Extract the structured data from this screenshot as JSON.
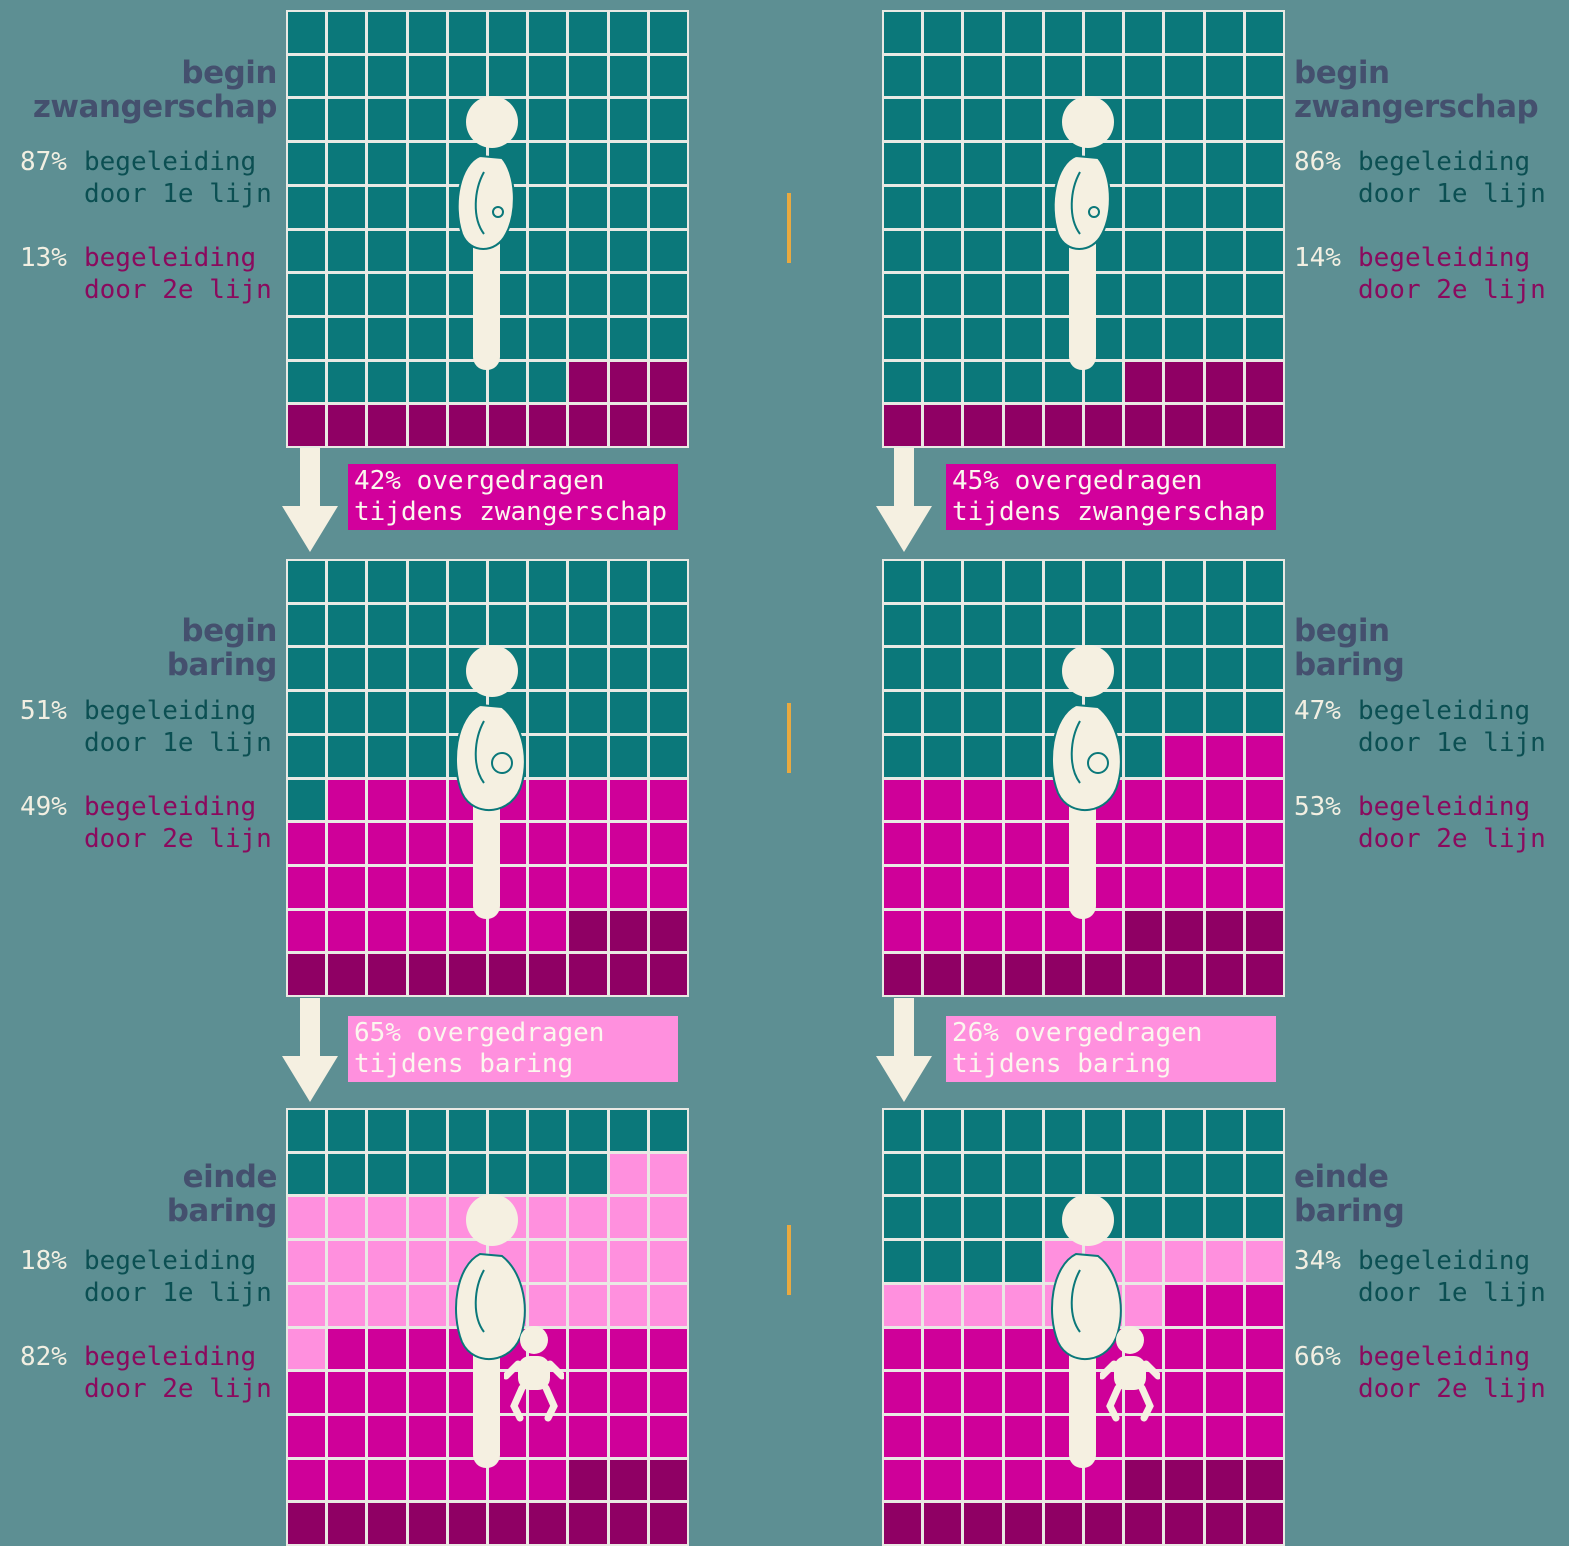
{
  "colors": {
    "background": "#5d8f93",
    "first_line": "#0b787a",
    "second_line_start": "#8f0064",
    "second_line_transfer_pregnancy": "#cf0099",
    "second_line_transfer_birth": "#ff90de",
    "title": "#44506e",
    "label_first": "#0b4f52",
    "label_second": "#8a0a5e",
    "percent_text": "#f2efe2",
    "grid_line": "#e9e9e4",
    "figure": "#f5f0e1",
    "banner_pregnancy": "#d2009c",
    "banner_birth": "#ff90de",
    "divider": "#e9a93f"
  },
  "chart_data": [
    {
      "type": "waffle",
      "panel": "left",
      "units": "percent",
      "stages": [
        {
          "title": [
            "begin",
            "zwangerschap"
          ],
          "first_line": {
            "percent": "87%",
            "label": "begeleiding\ndoor 1e lijn"
          },
          "second_line": {
            "percent": "13%",
            "label": "begeleiding\ndoor 2e lijn"
          },
          "cells": {
            "first_line": 87,
            "second_line_start": 13,
            "transfer_pregnancy": 0,
            "transfer_birth": 0
          },
          "figure": "pregnant-early"
        },
        {
          "title": [
            "begin",
            "baring"
          ],
          "first_line": {
            "percent": "51%",
            "label": "begeleiding\ndoor 1e lijn"
          },
          "second_line": {
            "percent": "49%",
            "label": "begeleiding\ndoor 2e lijn"
          },
          "cells": {
            "first_line": 51,
            "second_line_start": 13,
            "transfer_pregnancy": 36,
            "transfer_birth": 0
          },
          "figure": "pregnant-late"
        },
        {
          "title": [
            "einde",
            "baring"
          ],
          "first_line": {
            "percent": "18%",
            "label": "begeleiding\ndoor 1e lijn"
          },
          "second_line": {
            "percent": "82%",
            "label": "begeleiding\ndoor 2e lijn"
          },
          "cells": {
            "first_line": 18,
            "second_line_start": 13,
            "transfer_pregnancy": 36,
            "transfer_birth": 33
          },
          "figure": "mother-with-baby"
        }
      ],
      "transfers": [
        {
          "text": "42% overgedragen\ntijdens zwangerschap",
          "kind": "pregnancy"
        },
        {
          "text": "65% overgedragen\ntijdens baring",
          "kind": "birth"
        }
      ]
    },
    {
      "type": "waffle",
      "panel": "right",
      "units": "percent",
      "stages": [
        {
          "title": [
            "begin",
            "zwangerschap"
          ],
          "first_line": {
            "percent": "86%",
            "label": "begeleiding\ndoor 1e lijn"
          },
          "second_line": {
            "percent": "14%",
            "label": "begeleiding\ndoor 2e lijn"
          },
          "cells": {
            "first_line": 86,
            "second_line_start": 14,
            "transfer_pregnancy": 0,
            "transfer_birth": 0
          },
          "figure": "pregnant-early"
        },
        {
          "title": [
            "begin",
            "baring"
          ],
          "first_line": {
            "percent": "47%",
            "label": "begeleiding\ndoor 1e lijn"
          },
          "second_line": {
            "percent": "53%",
            "label": "begeleiding\ndoor 2e lijn"
          },
          "cells": {
            "first_line": 47,
            "second_line_start": 14,
            "transfer_pregnancy": 39,
            "transfer_birth": 0
          },
          "figure": "pregnant-late"
        },
        {
          "title": [
            "einde",
            "baring"
          ],
          "first_line": {
            "percent": "34%",
            "label": "begeleiding\ndoor 1e lijn"
          },
          "second_line": {
            "percent": "66%",
            "label": "begeleiding\ndoor 2e lijn"
          },
          "cells": {
            "first_line": 34,
            "second_line_start": 14,
            "transfer_pregnancy": 39,
            "transfer_birth": 13
          },
          "figure": "mother-with-baby"
        }
      ],
      "transfers": [
        {
          "text": "45% overgedragen\ntijdens zwangerschap",
          "kind": "pregnancy"
        },
        {
          "text": "26% overgedragen\ntijdens baring",
          "kind": "birth"
        }
      ]
    }
  ]
}
